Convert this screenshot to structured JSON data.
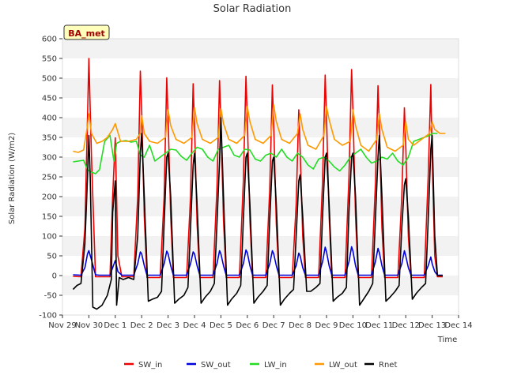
{
  "chart_data": {
    "type": "line",
    "title": "Solar Radiation",
    "ylabel": "Solar Radiation (W/m2)",
    "xlabel": "Time",
    "badge": "BA_met",
    "ylim": [
      -100,
      600
    ],
    "yticks": [
      -100,
      -50,
      0,
      50,
      100,
      150,
      200,
      250,
      300,
      350,
      400,
      450,
      500,
      550,
      600
    ],
    "xlim": [
      0,
      15
    ],
    "xticks": [
      {
        "v": 0,
        "label": "Nov 29"
      },
      {
        "v": 1,
        "label": "Nov 30"
      },
      {
        "v": 2,
        "label": "Dec 1"
      },
      {
        "v": 3,
        "label": "Dec 2"
      },
      {
        "v": 4,
        "label": "Dec 3"
      },
      {
        "v": 5,
        "label": "Dec 4"
      },
      {
        "v": 6,
        "label": "Dec 5"
      },
      {
        "v": 7,
        "label": "Dec 6"
      },
      {
        "v": 8,
        "label": "Dec 7"
      },
      {
        "v": 9,
        "label": "Dec 8"
      },
      {
        "v": 10,
        "label": "Dec 9"
      },
      {
        "v": 11,
        "label": "Dec 10"
      },
      {
        "v": 12,
        "label": "Dec 11"
      },
      {
        "v": 13,
        "label": "Dec 12"
      },
      {
        "v": 14,
        "label": "Dec 13"
      },
      {
        "v": 15,
        "label": "Dec 14"
      }
    ],
    "grid": "horizontal bands",
    "legend_position": "bottom",
    "series": [
      {
        "name": "SW_in",
        "color": "#ee0000",
        "x": [
          0.4,
          0.7,
          0.85,
          0.95,
          1.0,
          1.1,
          1.25,
          1.4,
          1.6,
          1.8,
          1.9,
          2.0,
          2.1,
          2.25,
          2.5,
          2.7,
          2.85,
          2.95,
          3.0,
          3.1,
          3.2,
          3.4,
          3.7,
          3.85,
          3.95,
          4.0,
          4.1,
          4.2,
          4.4,
          4.7,
          4.85,
          4.95,
          5.0,
          5.1,
          5.2,
          5.4,
          5.7,
          5.85,
          5.95,
          6.0,
          6.1,
          6.2,
          6.4,
          6.7,
          6.85,
          6.95,
          7.0,
          7.1,
          7.2,
          7.4,
          7.7,
          7.85,
          7.95,
          8.0,
          8.1,
          8.2,
          8.4,
          8.7,
          8.85,
          8.95,
          9.0,
          9.1,
          9.2,
          9.4,
          9.7,
          9.85,
          9.95,
          10.0,
          10.1,
          10.2,
          10.4,
          10.7,
          10.85,
          10.95,
          11.0,
          11.1,
          11.2,
          11.4,
          11.7,
          11.85,
          11.95,
          12.0,
          12.1,
          12.2,
          12.4,
          12.7,
          12.85,
          12.95,
          13.0,
          13.1,
          13.2,
          13.4,
          13.7,
          13.85,
          13.95,
          14.0,
          14.1,
          14.2,
          14.4
        ],
        "y": [
          -2,
          -3,
          120,
          400,
          550,
          300,
          -3,
          -3,
          -3,
          -3,
          200,
          349,
          50,
          -3,
          -3,
          -3,
          200,
          518,
          420,
          150,
          -5,
          -5,
          -5,
          200,
          501,
          400,
          150,
          -5,
          -5,
          -5,
          200,
          486,
          380,
          130,
          -5,
          -5,
          -5,
          220,
          494,
          390,
          140,
          -5,
          -5,
          -5,
          240,
          505,
          400,
          140,
          -5,
          -5,
          -5,
          220,
          483,
          380,
          130,
          -5,
          -5,
          -5,
          180,
          420,
          320,
          100,
          -5,
          -5,
          -5,
          240,
          508,
          400,
          150,
          -5,
          -5,
          -5,
          250,
          522,
          420,
          150,
          -5,
          -5,
          -5,
          230,
          481,
          380,
          120,
          -5,
          -5,
          -5,
          200,
          425,
          330,
          100,
          -5,
          -5,
          -5,
          250,
          484,
          300,
          50,
          -3,
          -3
        ]
      },
      {
        "name": "SW_out",
        "color": "#0000dd",
        "x": [
          0.4,
          0.7,
          0.85,
          0.95,
          1.0,
          1.1,
          1.25,
          1.4,
          1.6,
          1.8,
          1.9,
          2.0,
          2.1,
          2.25,
          2.5,
          2.7,
          2.85,
          2.95,
          3.0,
          3.1,
          3.2,
          3.4,
          3.7,
          3.85,
          3.95,
          4.0,
          4.1,
          4.2,
          4.4,
          4.7,
          4.85,
          4.95,
          5.0,
          5.1,
          5.2,
          5.4,
          5.7,
          5.85,
          5.95,
          6.0,
          6.1,
          6.2,
          6.4,
          6.7,
          6.85,
          6.95,
          7.0,
          7.1,
          7.2,
          7.4,
          7.7,
          7.85,
          7.95,
          8.0,
          8.1,
          8.2,
          8.4,
          8.7,
          8.85,
          8.95,
          9.0,
          9.1,
          9.2,
          9.4,
          9.7,
          9.85,
          9.95,
          10.0,
          10.1,
          10.2,
          10.4,
          10.7,
          10.85,
          10.95,
          11.0,
          11.1,
          11.2,
          11.4,
          11.7,
          11.85,
          11.95,
          12.0,
          12.1,
          12.2,
          12.4,
          12.7,
          12.85,
          12.95,
          13.0,
          13.1,
          13.2,
          13.4,
          13.7,
          13.85,
          13.95,
          14.0,
          14.1,
          14.2,
          14.4
        ],
        "y": [
          2,
          1,
          20,
          55,
          63,
          40,
          2,
          1,
          1,
          1,
          20,
          38,
          10,
          1,
          1,
          1,
          30,
          60,
          55,
          25,
          1,
          1,
          1,
          30,
          62,
          55,
          25,
          1,
          1,
          1,
          30,
          60,
          55,
          25,
          1,
          1,
          1,
          30,
          63,
          55,
          25,
          1,
          1,
          1,
          30,
          65,
          58,
          25,
          1,
          1,
          1,
          30,
          63,
          55,
          25,
          1,
          1,
          1,
          25,
          57,
          50,
          20,
          1,
          1,
          1,
          35,
          72,
          60,
          25,
          1,
          1,
          1,
          35,
          73,
          62,
          25,
          1,
          1,
          1,
          35,
          69,
          58,
          25,
          1,
          1,
          1,
          30,
          63,
          50,
          20,
          1,
          1,
          1,
          25,
          47,
          30,
          10,
          1,
          1
        ]
      },
      {
        "name": "LW_in",
        "color": "#22dd22",
        "x": [
          0.4,
          0.6,
          0.8,
          0.95,
          1.1,
          1.25,
          1.4,
          1.6,
          1.8,
          1.95,
          2.05,
          2.2,
          2.4,
          2.6,
          2.8,
          2.95,
          3.1,
          3.3,
          3.5,
          3.7,
          3.9,
          4.1,
          4.3,
          4.5,
          4.7,
          4.9,
          5.1,
          5.3,
          5.5,
          5.7,
          5.9,
          6.1,
          6.3,
          6.5,
          6.7,
          6.9,
          7.1,
          7.3,
          7.5,
          7.7,
          7.9,
          8.1,
          8.3,
          8.5,
          8.7,
          8.9,
          9.1,
          9.3,
          9.5,
          9.7,
          9.9,
          10.1,
          10.3,
          10.5,
          10.7,
          10.9,
          11.1,
          11.3,
          11.5,
          11.7,
          11.9,
          12.1,
          12.3,
          12.5,
          12.7,
          12.9,
          13.1,
          13.3,
          13.5,
          13.7,
          13.9,
          14.0,
          14.2
        ],
        "y": [
          288,
          290,
          292,
          268,
          262,
          258,
          268,
          340,
          355,
          290,
          335,
          340,
          342,
          338,
          340,
          305,
          300,
          330,
          290,
          300,
          310,
          320,
          318,
          302,
          292,
          310,
          325,
          320,
          300,
          290,
          320,
          325,
          330,
          305,
          300,
          320,
          318,
          295,
          290,
          305,
          310,
          300,
          320,
          300,
          290,
          310,
          300,
          280,
          270,
          295,
          300,
          290,
          275,
          265,
          280,
          300,
          310,
          320,
          300,
          285,
          290,
          300,
          295,
          310,
          290,
          280,
          300,
          340,
          345,
          350,
          355,
          360,
          360
        ]
      },
      {
        "name": "LW_out",
        "color": "#ff9900",
        "x": [
          0.4,
          0.6,
          0.8,
          0.95,
          1.0,
          1.1,
          1.3,
          1.5,
          1.7,
          1.9,
          2.0,
          2.2,
          2.5,
          2.8,
          2.95,
          3.0,
          3.1,
          3.3,
          3.6,
          3.9,
          4.0,
          4.1,
          4.3,
          4.6,
          4.9,
          5.0,
          5.1,
          5.3,
          5.6,
          5.9,
          6.0,
          6.1,
          6.3,
          6.6,
          6.9,
          7.0,
          7.1,
          7.3,
          7.6,
          7.9,
          8.0,
          8.1,
          8.3,
          8.6,
          8.9,
          9.0,
          9.1,
          9.3,
          9.6,
          9.9,
          10.0,
          10.1,
          10.3,
          10.6,
          10.9,
          11.0,
          11.1,
          11.3,
          11.6,
          11.9,
          12.0,
          12.1,
          12.3,
          12.6,
          12.9,
          13.0,
          13.1,
          13.3,
          13.6,
          13.9,
          14.0,
          14.1,
          14.3,
          14.5
        ],
        "y": [
          315,
          312,
          318,
          380,
          410,
          360,
          335,
          340,
          350,
          370,
          385,
          340,
          340,
          345,
          360,
          405,
          360,
          340,
          335,
          350,
          420,
          380,
          345,
          335,
          350,
          425,
          385,
          345,
          335,
          350,
          423,
          385,
          345,
          335,
          355,
          428,
          390,
          345,
          335,
          355,
          432,
          390,
          345,
          335,
          360,
          410,
          370,
          330,
          320,
          355,
          428,
          395,
          345,
          330,
          340,
          420,
          380,
          330,
          315,
          345,
          410,
          370,
          325,
          315,
          330,
          390,
          345,
          330,
          345,
          360,
          390,
          370,
          360,
          360
        ]
      },
      {
        "name": "Rnet",
        "color": "#000000",
        "x": [
          0.4,
          0.55,
          0.7,
          0.85,
          0.95,
          1.0,
          1.05,
          1.15,
          1.3,
          1.5,
          1.7,
          1.85,
          1.9,
          2.0,
          2.05,
          2.15,
          2.3,
          2.5,
          2.7,
          2.85,
          2.95,
          3.0,
          3.1,
          3.25,
          3.4,
          3.6,
          3.75,
          3.85,
          3.95,
          4.0,
          4.1,
          4.25,
          4.4,
          4.6,
          4.75,
          4.85,
          4.95,
          5.0,
          5.1,
          5.25,
          5.4,
          5.6,
          5.75,
          5.85,
          5.95,
          6.0,
          6.1,
          6.25,
          6.4,
          6.6,
          6.75,
          6.85,
          6.95,
          7.0,
          7.1,
          7.25,
          7.4,
          7.6,
          7.75,
          7.85,
          7.95,
          8.0,
          8.1,
          8.25,
          8.4,
          8.6,
          8.75,
          8.85,
          8.95,
          9.0,
          9.1,
          9.25,
          9.4,
          9.6,
          9.75,
          9.85,
          9.95,
          10.0,
          10.1,
          10.25,
          10.4,
          10.6,
          10.75,
          10.85,
          10.95,
          11.0,
          11.1,
          11.25,
          11.4,
          11.6,
          11.75,
          11.85,
          11.95,
          12.0,
          12.1,
          12.25,
          12.4,
          12.6,
          12.75,
          12.85,
          12.95,
          13.0,
          13.1,
          13.25,
          13.4,
          13.6,
          13.75,
          13.85,
          13.95,
          14.0,
          14.1,
          14.2,
          14.4
        ],
        "y": [
          -35,
          -25,
          -20,
          80,
          250,
          355,
          250,
          -80,
          -85,
          -75,
          -50,
          -10,
          160,
          240,
          -75,
          -5,
          -10,
          -5,
          -10,
          100,
          310,
          360,
          200,
          -65,
          -60,
          -55,
          -40,
          130,
          300,
          310,
          200,
          -70,
          -60,
          -50,
          -30,
          120,
          280,
          310,
          180,
          -70,
          -55,
          -40,
          -20,
          130,
          290,
          400,
          200,
          -75,
          -60,
          -45,
          -25,
          140,
          300,
          310,
          180,
          -70,
          -55,
          -40,
          -25,
          140,
          290,
          300,
          180,
          -75,
          -60,
          -45,
          -35,
          100,
          240,
          255,
          150,
          -40,
          -40,
          -30,
          -20,
          150,
          300,
          310,
          180,
          -65,
          -55,
          -45,
          -30,
          160,
          300,
          310,
          200,
          -75,
          -60,
          -40,
          -20,
          140,
          300,
          355,
          200,
          -65,
          -55,
          -40,
          -25,
          120,
          230,
          245,
          150,
          -60,
          -45,
          -30,
          -20,
          140,
          320,
          355,
          100,
          0,
          0
        ]
      }
    ]
  }
}
